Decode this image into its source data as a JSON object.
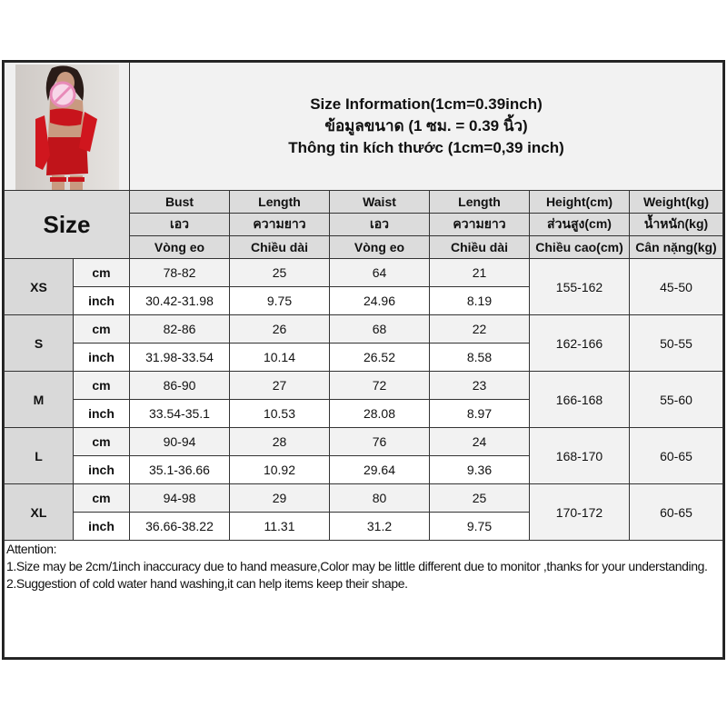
{
  "title": {
    "line1": "Size Information(1cm=0.39inch)",
    "line2": "ข้อมูลขนาด (1 ซม. = 0.39 นิ้ว)",
    "line3": "Thông tin kích thước (1cm=0,39 inch)"
  },
  "size_label": "Size",
  "columns": [
    {
      "en": "Bust",
      "th": "เอว",
      "vi": "Vòng eo"
    },
    {
      "en": "Length",
      "th": "ความยาว",
      "vi": "Chiều dài"
    },
    {
      "en": "Waist",
      "th": "เอว",
      "vi": "Vòng eo"
    },
    {
      "en": "Length",
      "th": "ความยาว",
      "vi": "Chiều dài"
    },
    {
      "en": "Height(cm)",
      "th": "ส่วนสูง(cm)",
      "vi": "Chiều cao(cm)"
    },
    {
      "en": "Weight(kg)",
      "th": "น้ำหนัก(kg)",
      "vi": "Cân nặng(kg)"
    }
  ],
  "units": {
    "cm": "cm",
    "inch": "inch"
  },
  "rows": [
    {
      "size": "XS",
      "cm": [
        "78-82",
        "25",
        "64",
        "21"
      ],
      "inch": [
        "30.42-31.98",
        "9.75",
        "24.96",
        "8.19"
      ],
      "height": "155-162",
      "weight": "45-50"
    },
    {
      "size": "S",
      "cm": [
        "82-86",
        "26",
        "68",
        "22"
      ],
      "inch": [
        "31.98-33.54",
        "10.14",
        "26.52",
        "8.58"
      ],
      "height": "162-166",
      "weight": "50-55"
    },
    {
      "size": "M",
      "cm": [
        "86-90",
        "27",
        "72",
        "23"
      ],
      "inch": [
        "33.54-35.1",
        "10.53",
        "28.08",
        "8.97"
      ],
      "height": "166-168",
      "weight": "55-60"
    },
    {
      "size": "L",
      "cm": [
        "90-94",
        "28",
        "76",
        "24"
      ],
      "inch": [
        "35.1-36.66",
        "10.92",
        "29.64",
        "9.36"
      ],
      "height": "168-170",
      "weight": "60-65"
    },
    {
      "size": "XL",
      "cm": [
        "94-98",
        "29",
        "80",
        "25"
      ],
      "inch": [
        "36.66-38.22",
        "11.31",
        "31.2",
        "9.75"
      ],
      "height": "170-172",
      "weight": "60-65"
    }
  ],
  "attention": {
    "heading": "Attention:",
    "note1": "1.Size may be 2cm/1inch inaccuracy due to hand measure,Color may be little different due to monitor ,thanks for your understanding.",
    "note2": "2.Suggestion of cold water hand washing,it can help items keep their shape."
  },
  "colors": {
    "header_bg": "#dcdcdc",
    "alt_row_bg": "#f2f2f2",
    "border": "#333333",
    "product_red": "#c8141c"
  }
}
